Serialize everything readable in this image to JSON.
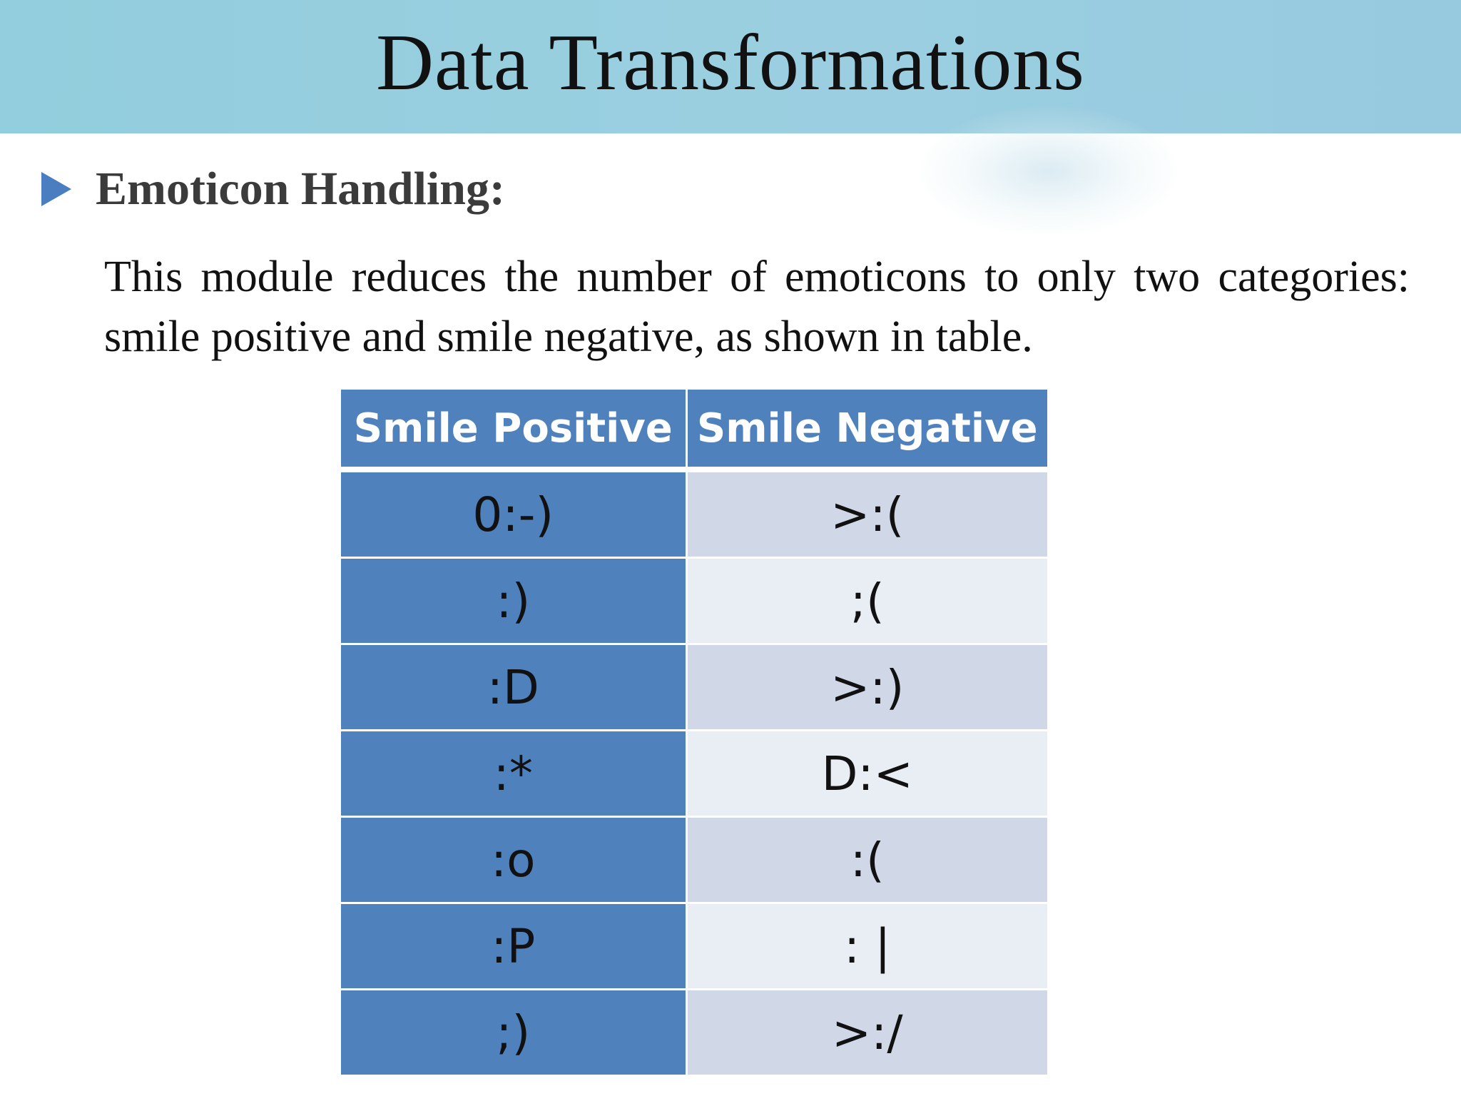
{
  "slide": {
    "title": "Data Transformations",
    "bullet": {
      "heading": "Emoticon Handling:",
      "body": "This module reduces the number of emoticons to only two categories: smile positive and smile negative, as shown in table."
    },
    "table": {
      "headers": [
        "Smile Positive",
        "Smile Negative"
      ],
      "rows": [
        [
          "0:-)",
          ">:("
        ],
        [
          ":)",
          ";("
        ],
        [
          ":D",
          ">:)"
        ],
        [
          ":*",
          "D:<"
        ],
        [
          ":o",
          ":("
        ],
        [
          ":P",
          ": |"
        ],
        [
          ";)",
          ">:/"
        ]
      ]
    }
  },
  "colors": {
    "title_bar": "#95cddf",
    "table_header": "#4f81bd",
    "positive_cell": "#4f81bd",
    "negative_cell_dark": "#d0d8e8",
    "negative_cell_light": "#e9edf4",
    "bullet": "#4a7ec0"
  },
  "icons": {
    "bullet": "triangle-bullet-icon"
  }
}
